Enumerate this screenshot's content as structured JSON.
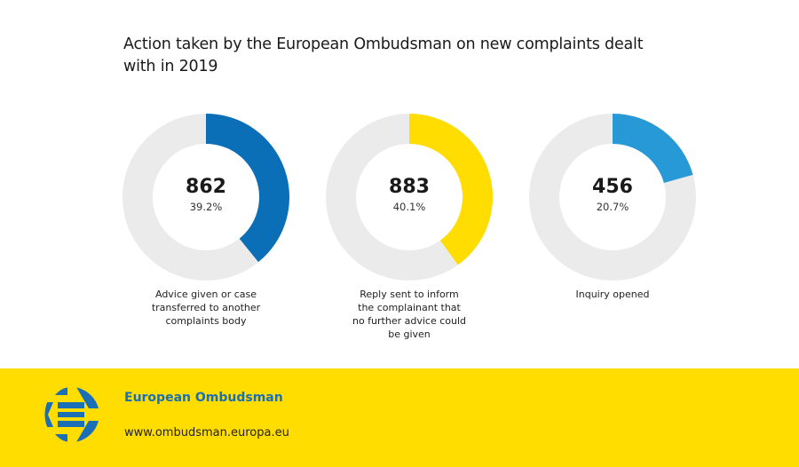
{
  "chart_data": {
    "type": "pie",
    "variant": "donut",
    "title": "Action taken by the European Ombudsman on new complaints dealt with in 2019",
    "total_implied": 2201,
    "track_color": "#ebebeb",
    "series": [
      {
        "name": "Advice given or case transferred to another complaints body",
        "value": 862,
        "percent_label": "39.2%",
        "fraction": 0.392,
        "color": "#0b6fb8"
      },
      {
        "name": "Reply sent to inform the complainant that no further advice could be given",
        "value": 883,
        "percent_label": "40.1%",
        "fraction": 0.401,
        "color": "#ffdd00"
      },
      {
        "name": "Inquiry opened",
        "value": 456,
        "percent_label": "20.7%",
        "fraction": 0.207,
        "color": "#2799d6"
      }
    ]
  },
  "title_lines": [
    "Action taken by the European Ombudsman on new complaints dealt",
    "with in 2019"
  ],
  "donuts": [
    {
      "value": "862",
      "percent": "39.2%",
      "label_lines": [
        "Advice given or case",
        "transferred to another",
        "complaints body"
      ]
    },
    {
      "value": "883",
      "percent": "40.1%",
      "label_lines": [
        "Reply sent to inform",
        "the complainant that",
        "no further advice could",
        "be given"
      ]
    },
    {
      "value": "456",
      "percent": "20.7%",
      "label_lines": [
        "Inquiry opened"
      ]
    }
  ],
  "footer": {
    "brand": "European Ombudsman",
    "url": "www.ombudsman.europa.eu",
    "background": "#ffdd00",
    "brand_color": "#1a6fb6",
    "logo_icon": "european-ombudsman-logo-icon"
  }
}
